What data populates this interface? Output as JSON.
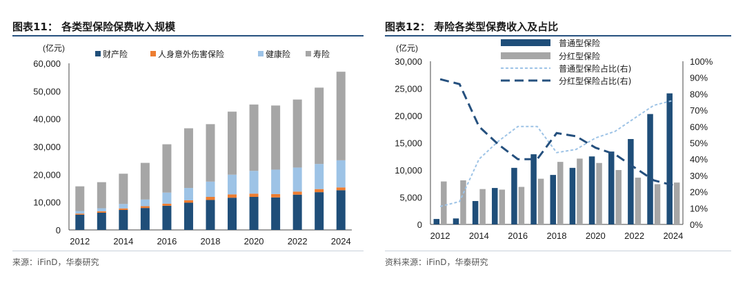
{
  "left": {
    "title": "图表11： 各类型保险保费收入规模",
    "source": "来源：iFinD，华泰研究"
  },
  "right": {
    "title": "图表12： 寿险各类型保费收入及占比",
    "source": "资料来源：iFinD，华泰研究"
  },
  "colors": {
    "property": "#1f4e79",
    "accident": "#ed7d31",
    "health": "#9dc3e6",
    "life": "#a6a6a6",
    "ordinary": "#1f4e79",
    "participating": "#a6a6a6",
    "ordinary_share": "#9dc3e6",
    "participating_share": "#25507e",
    "rule": "#25507e"
  },
  "chart_data": [
    {
      "type": "bar",
      "stacked": true,
      "unit_label": "(亿元)",
      "categories": [
        "2012",
        "2013",
        "2014",
        "2015",
        "2016",
        "2017",
        "2018",
        "2019",
        "2020",
        "2021",
        "2022",
        "2023",
        "2024"
      ],
      "x_tick_labels": [
        "2012",
        "2014",
        "2016",
        "2018",
        "2020",
        "2022",
        "2024"
      ],
      "ylim": [
        0,
        60000
      ],
      "y_ticks": [
        "0",
        "10,000",
        "20,000",
        "30,000",
        "40,000",
        "50,000",
        "60,000"
      ],
      "legend_position": "top",
      "series": [
        {
          "name": "财产险",
          "values": [
            5500,
            6200,
            7200,
            7900,
            8700,
            9800,
            10800,
            11600,
            11900,
            11700,
            12700,
            13600,
            14300
          ]
        },
        {
          "name": "人身意外伤害保险",
          "values": [
            400,
            500,
            550,
            650,
            750,
            900,
            1100,
            1200,
            1170,
            1210,
            1110,
            1110,
            1010
          ]
        },
        {
          "name": "健康险",
          "values": [
            900,
            1100,
            1600,
            2400,
            4000,
            4400,
            5500,
            7100,
            8200,
            8800,
            8650,
            9040,
            9770
          ]
        },
        {
          "name": "寿险",
          "values": [
            8900,
            9400,
            10900,
            13200,
            17400,
            21500,
            20700,
            22700,
            23900,
            23100,
            24500,
            27500,
            31900
          ]
        }
      ]
    },
    {
      "type": "bar",
      "unit_label": "(亿元)",
      "categories": [
        "2012",
        "2013",
        "2014",
        "2015",
        "2016",
        "2017",
        "2018",
        "2019",
        "2020",
        "2021",
        "2022",
        "2023",
        "2024"
      ],
      "x_tick_labels": [
        "2012",
        "2014",
        "2016",
        "2018",
        "2020",
        "2022",
        "2024"
      ],
      "ylim": [
        0,
        30000
      ],
      "y_ticks": [
        "0",
        "5,000",
        "10,000",
        "15,000",
        "20,000",
        "25,000",
        "30,000"
      ],
      "y2lim": [
        0,
        100
      ],
      "y2_ticks": [
        "0%",
        "10%",
        "20%",
        "30%",
        "40%",
        "50%",
        "60%",
        "70%",
        "80%",
        "90%",
        "100%"
      ],
      "legend_position": "top-right",
      "series": [
        {
          "name": "普通型保险",
          "kind": "bar",
          "values": [
            1000,
            1100,
            4300,
            6700,
            10400,
            12900,
            9100,
            10400,
            12500,
            13400,
            15700,
            20300,
            24100
          ]
        },
        {
          "name": "分红型保险",
          "kind": "bar",
          "values": [
            7900,
            8100,
            6500,
            6400,
            6900,
            8400,
            11500,
            12100,
            11300,
            10000,
            8600,
            7400,
            7700
          ]
        },
        {
          "name": "普通型保险占比(右)",
          "kind": "line",
          "axis": "right",
          "values": [
            11,
            14,
            40,
            51,
            60,
            60,
            44,
            46,
            53,
            57,
            65,
            73,
            76
          ]
        },
        {
          "name": "分红型保险占比(右)",
          "kind": "line",
          "axis": "right",
          "values": [
            89,
            86,
            60,
            49,
            40,
            40,
            56,
            54,
            47,
            43,
            35,
            27,
            24
          ]
        }
      ]
    }
  ]
}
